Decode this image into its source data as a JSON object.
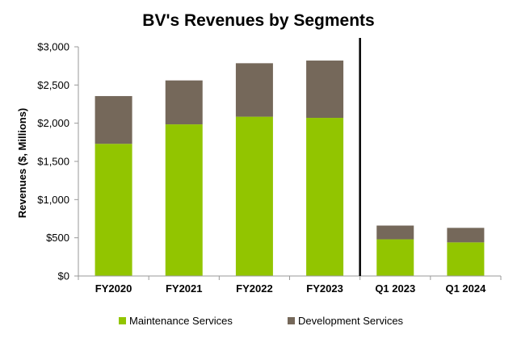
{
  "chart_data": {
    "type": "bar",
    "stacked": true,
    "title": "BV's Revenues by Segments",
    "xlabel": "",
    "ylabel": "Revenues ($, Millions)",
    "ylim": [
      0,
      3000
    ],
    "yticks": [
      "$0",
      "$500",
      "$1,000",
      "$1,500",
      "$2,000",
      "$2,500",
      "$3,000"
    ],
    "categories": [
      "FY2020",
      "FY2021",
      "FY2022",
      "FY2023",
      "Q1 2023",
      "Q1 2024"
    ],
    "series": [
      {
        "name": "Maintenance Services",
        "color": "#92c500",
        "values": [
          1730,
          1985,
          2085,
          2070,
          480,
          440
        ]
      },
      {
        "name": "Development Services",
        "color": "#75685a",
        "values": [
          625,
          575,
          700,
          750,
          180,
          190
        ]
      }
    ],
    "grid": false,
    "legend": "bottom",
    "separator_after_category": 3
  }
}
